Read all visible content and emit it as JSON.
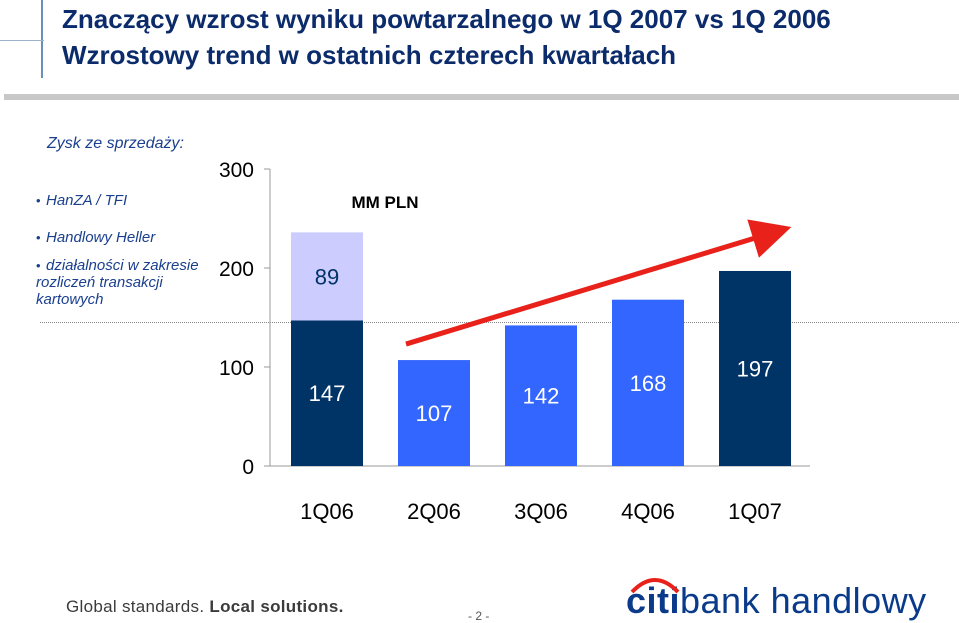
{
  "header": {
    "title_line1": "Znaczący wzrost wyniku powtarzalnego w 1Q 2007 vs 1Q 2006",
    "title_line2": "Wzrostowy trend w ostatnich czterech kwartałach"
  },
  "sidebar": {
    "heading": "Zysk ze sprzedaży:",
    "items": [
      "HanZA / TFI",
      "Handlowy Heller",
      "działalności w zakresie rozliczeń transakcji kartowych"
    ]
  },
  "colors": {
    "dark_navy": "#003366",
    "light_lavender": "#ccccff",
    "blue": "#3366ff",
    "arrow_red": "#e8221b",
    "title_blue": "#0b2b6b"
  },
  "chart_data": {
    "type": "bar",
    "stacked": true,
    "unit_label": "MM PLN",
    "categories": [
      "1Q06",
      "2Q06",
      "3Q06",
      "4Q06",
      "1Q07"
    ],
    "series": [
      {
        "values": [
          147,
          107,
          142,
          168,
          197
        ],
        "colors": [
          "#003366",
          "#3366ff",
          "#3366ff",
          "#3366ff",
          "#003366"
        ]
      },
      {
        "values": [
          89,
          0,
          0,
          0,
          0
        ],
        "colors": [
          "#ccccff",
          "#ccccff",
          "#ccccff",
          "#ccccff",
          "#ccccff"
        ]
      }
    ],
    "yticks": [
      0,
      100,
      200,
      300
    ],
    "ylim": [
      0,
      300
    ],
    "trend_arrow": {
      "from_category": "2Q06",
      "to_category": "1Q07",
      "color": "#e8221b"
    },
    "grid": false
  },
  "footer": {
    "tagline_part1": "Global standards.",
    "tagline_part2": "Local solutions.",
    "page_number": "- 2 -",
    "logo_citi": "citi",
    "logo_rest": "bank handlowy"
  }
}
